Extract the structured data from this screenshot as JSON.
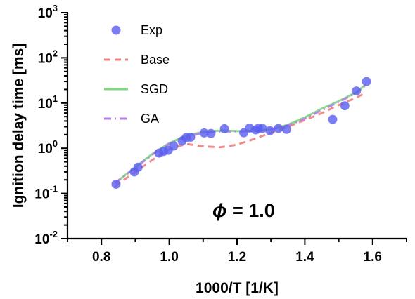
{
  "chart_data": {
    "type": "scatter",
    "xlabel": "1000/T [1/K]",
    "ylabel": "Ignition delay time [ms]",
    "xlim": [
      0.7,
      1.7
    ],
    "ylim_log10": [
      -2,
      3
    ],
    "y_scale": "log",
    "x_ticks": [
      "0.8",
      "1.0",
      "1.2",
      "1.4",
      "1.6"
    ],
    "y_ticks": [
      {
        "base": "10",
        "exp": "-2"
      },
      {
        "base": "10",
        "exp": "-1"
      },
      {
        "base": "10",
        "exp": "0"
      },
      {
        "base": "10",
        "exp": "1"
      },
      {
        "base": "10",
        "exp": "2"
      },
      {
        "base": "10",
        "exp": "3"
      }
    ],
    "annotation": {
      "phi": "ϕ",
      "rest": " = 1.0"
    },
    "legend_position": "top-left",
    "series": [
      {
        "name": "Exp",
        "kind": "points",
        "color": "#5a5ef0",
        "points": [
          [
            0.843,
            0.16
          ],
          [
            0.897,
            0.3
          ],
          [
            0.908,
            0.38
          ],
          [
            0.97,
            0.78
          ],
          [
            0.983,
            0.85
          ],
          [
            0.997,
            0.9
          ],
          [
            1.013,
            1.12
          ],
          [
            1.038,
            1.45
          ],
          [
            1.05,
            1.72
          ],
          [
            1.063,
            1.75
          ],
          [
            1.103,
            2.18
          ],
          [
            1.123,
            2.12
          ],
          [
            1.163,
            2.7
          ],
          [
            1.22,
            2.2
          ],
          [
            1.237,
            2.8
          ],
          [
            1.255,
            2.55
          ],
          [
            1.263,
            2.75
          ],
          [
            1.275,
            2.75
          ],
          [
            1.297,
            2.45
          ],
          [
            1.322,
            2.75
          ],
          [
            1.346,
            2.62
          ],
          [
            1.482,
            4.35
          ],
          [
            1.518,
            8.7
          ],
          [
            1.552,
            18.5
          ],
          [
            1.582,
            30.0
          ]
        ]
      },
      {
        "name": "Base",
        "kind": "line",
        "color": "#f08080",
        "dash": "dash",
        "points": [
          [
            0.84,
            0.145
          ],
          [
            0.9,
            0.3
          ],
          [
            0.95,
            0.55
          ],
          [
            1.0,
            0.95
          ],
          [
            1.05,
            1.25
          ],
          [
            1.1,
            1.1
          ],
          [
            1.15,
            1.05
          ],
          [
            1.2,
            1.2
          ],
          [
            1.25,
            1.6
          ],
          [
            1.3,
            2.2
          ],
          [
            1.35,
            3.0
          ],
          [
            1.4,
            4.2
          ],
          [
            1.45,
            6.0
          ],
          [
            1.5,
            9.0
          ],
          [
            1.55,
            13.0
          ],
          [
            1.58,
            17.0
          ]
        ]
      },
      {
        "name": "SGD",
        "kind": "line",
        "color": "#7bd97b",
        "dash": "solid",
        "points": [
          [
            0.84,
            0.17
          ],
          [
            0.9,
            0.38
          ],
          [
            0.95,
            0.75
          ],
          [
            1.0,
            1.3
          ],
          [
            1.05,
            1.9
          ],
          [
            1.1,
            2.3
          ],
          [
            1.15,
            2.45
          ],
          [
            1.2,
            2.4
          ],
          [
            1.25,
            2.4
          ],
          [
            1.3,
            2.6
          ],
          [
            1.35,
            3.3
          ],
          [
            1.4,
            4.8
          ],
          [
            1.45,
            7.5
          ],
          [
            1.5,
            11.0
          ],
          [
            1.55,
            17.0
          ],
          [
            1.58,
            26.0
          ]
        ]
      },
      {
        "name": "GA",
        "kind": "line",
        "color": "#b77ce8",
        "dash": "dashdot",
        "points": [
          [
            0.84,
            0.17
          ],
          [
            0.9,
            0.37
          ],
          [
            0.95,
            0.72
          ],
          [
            1.0,
            1.25
          ],
          [
            1.05,
            1.8
          ],
          [
            1.1,
            2.2
          ],
          [
            1.15,
            2.35
          ],
          [
            1.2,
            2.35
          ],
          [
            1.25,
            2.4
          ],
          [
            1.3,
            2.6
          ],
          [
            1.35,
            3.2
          ],
          [
            1.4,
            4.5
          ],
          [
            1.45,
            7.0
          ],
          [
            1.5,
            10.5
          ],
          [
            1.55,
            16.5
          ],
          [
            1.58,
            25.0
          ]
        ]
      }
    ]
  }
}
